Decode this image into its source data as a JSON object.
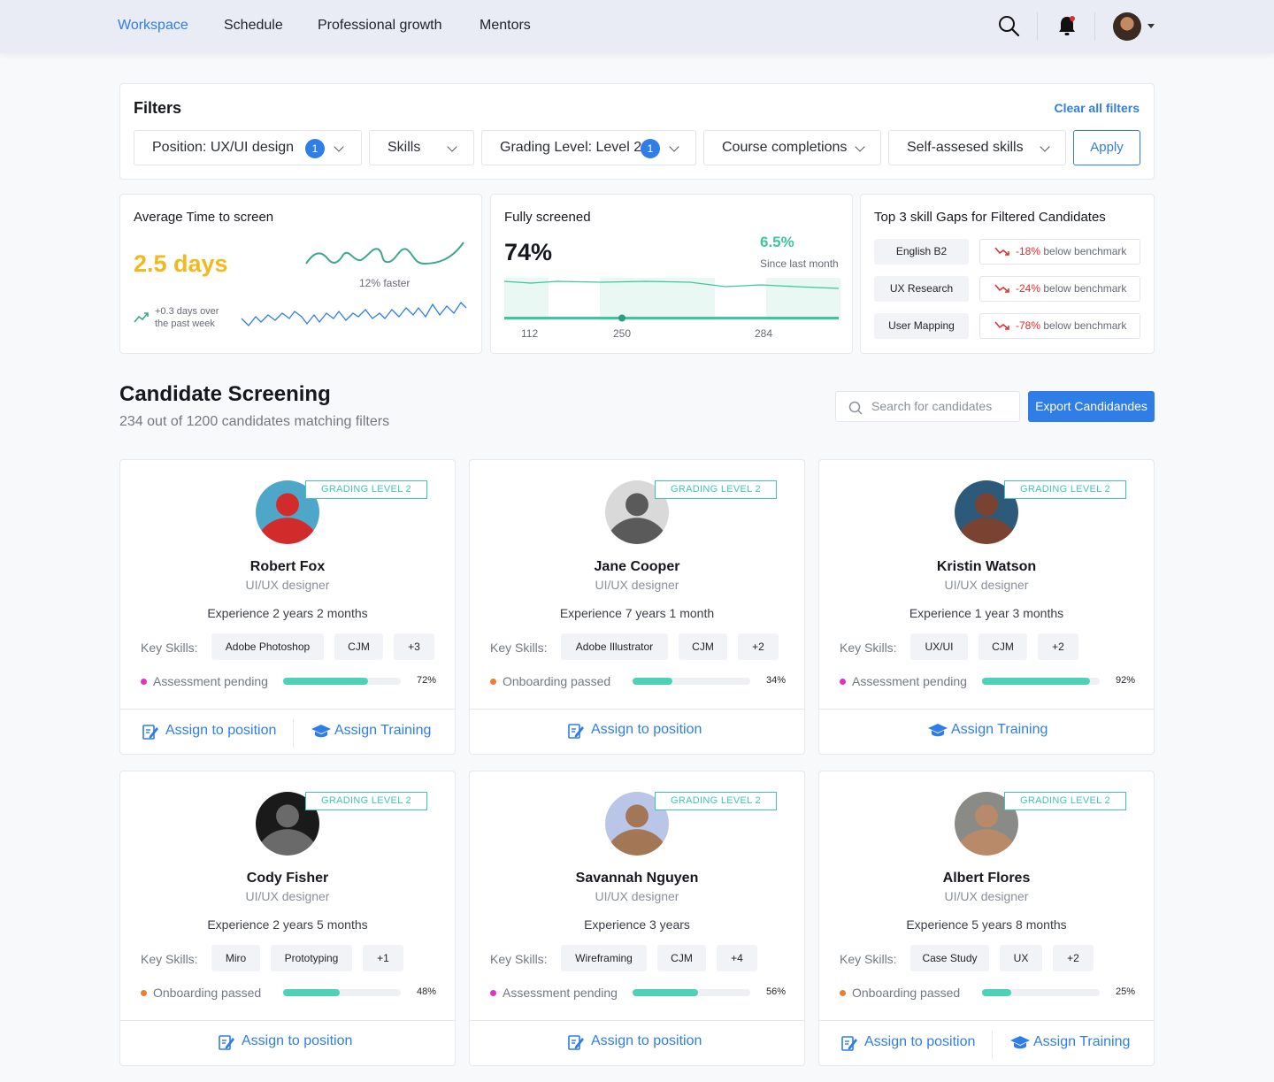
{
  "nav": {
    "items": [
      "Workspace",
      "Schedule",
      "Professional growth",
      "Mentors"
    ]
  },
  "filters": {
    "title": "Filters",
    "clear_label": "Clear all filters",
    "items": [
      {
        "label": "Position: UX/UI design",
        "badge": "1"
      },
      {
        "label": "Skills"
      },
      {
        "label": "Grading Level: Level 2",
        "badge": "1"
      },
      {
        "label": "Course completions"
      },
      {
        "label": "Self-assesed skills"
      }
    ],
    "apply_label": "Apply"
  },
  "stats": {
    "avg_time": {
      "title": "Average Time to screen",
      "value": "2.5 days",
      "faster_label": "12% faster",
      "trend_label_1": "+0.3 days over",
      "trend_label_2": "the past week"
    },
    "fully_screened": {
      "title": "Fully screened",
      "value": "74%",
      "change": "6.5%",
      "change_label": "Since last month",
      "axis": [
        "112",
        "250",
        "284"
      ]
    },
    "skill_gaps": {
      "title": "Top 3 skill Gaps for Filtered Candidates",
      "items": [
        {
          "skill": "English B2",
          "value": "-18%",
          "suffix": "below benchmark"
        },
        {
          "skill": "UX Research",
          "value": "-24%",
          "suffix": "below benchmark"
        },
        {
          "skill": "User Mapping",
          "value": "-78%",
          "suffix": "below benchmark"
        }
      ]
    }
  },
  "screening": {
    "title": "Candidate Screening",
    "subtitle": "234 out of 1200 candidates matching filters",
    "search_placeholder": "Search for candidates",
    "export_label": "Export Candidandes"
  },
  "labels": {
    "key_skills": "Key Skills:"
  },
  "candidates": [
    {
      "name": "Robert Fox",
      "role": "UI/UX designer",
      "experience": "Experience 2 years 2 months",
      "grade": "GRADING LEVEL 2",
      "skills": [
        "Adobe Photoshop",
        "CJM",
        "+3"
      ],
      "status": "Assessment pending",
      "status_color": "#e030c8",
      "progress": 0.72,
      "progress_label": "72%",
      "actions": [
        "Assign to position",
        "Assign Training"
      ],
      "avatar": [
        "#4ea7c9",
        "#d12b2b"
      ]
    },
    {
      "name": "Jane Cooper",
      "role": "UI/UX designer",
      "experience": "Experience 7 years 1 month",
      "grade": "GRADING LEVEL 2",
      "skills": [
        "Adobe Illustrator",
        "CJM",
        "+2"
      ],
      "status": "Onboarding passed",
      "status_color": "#f07c2e",
      "progress": 0.34,
      "progress_label": "34%",
      "actions": [
        "Assign to position"
      ],
      "avatar": [
        "#d9d9d9",
        "#5a5a5a"
      ]
    },
    {
      "name": "Kristin Watson",
      "role": "UI/UX designer",
      "experience": "Experience 1 year 3 months",
      "grade": "GRADING LEVEL 2",
      "skills": [
        "UX/UI",
        "CJM",
        "+2"
      ],
      "status": "Assessment pending",
      "status_color": "#e030c8",
      "progress": 0.92,
      "progress_label": "92%",
      "actions": [
        "Assign Training"
      ],
      "avatar": [
        "#2d5a7a",
        "#7a4230"
      ]
    },
    {
      "name": "Cody Fisher",
      "role": "UI/UX designer",
      "experience": "Experience 2 years 5 months",
      "grade": "GRADING LEVEL 2",
      "skills": [
        "Miro",
        "Prototyping",
        "+1"
      ],
      "status": "Onboarding passed",
      "status_color": "#f07c2e",
      "progress": 0.48,
      "progress_label": "48%",
      "actions": [
        "Assign to position"
      ],
      "avatar": [
        "#1a1a1a",
        "#6a6a6a"
      ]
    },
    {
      "name": "Savannah Nguyen",
      "role": "UI/UX designer",
      "experience": "Experience 3 years",
      "grade": "GRADING LEVEL 2",
      "skills": [
        "Wireframing",
        "CJM",
        "+4"
      ],
      "status": "Assessment pending",
      "status_color": "#e030c8",
      "progress": 0.56,
      "progress_label": "56%",
      "actions": [
        "Assign to position"
      ],
      "avatar": [
        "#b9c6e8",
        "#a37656"
      ]
    },
    {
      "name": "Albert Flores",
      "role": "UI/UX designer",
      "experience": "Experience 5 years 8 months",
      "grade": "GRADING LEVEL 2",
      "skills": [
        "Case Study",
        "UX",
        "+2"
      ],
      "status": "Onboarding passed",
      "status_color": "#f07c2e",
      "progress": 0.25,
      "progress_label": "25%",
      "actions": [
        "Assign to position",
        "Assign Training"
      ],
      "avatar": [
        "#8a8a86",
        "#b98a6a"
      ]
    }
  ]
}
